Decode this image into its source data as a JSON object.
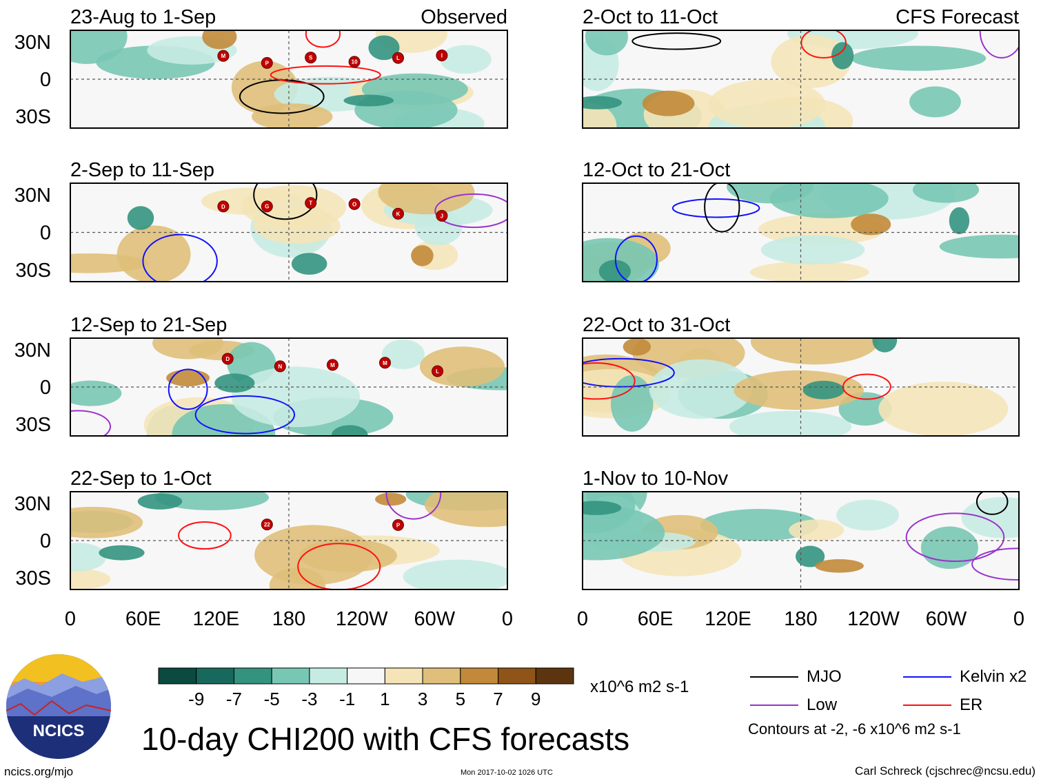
{
  "chart_data": {
    "type": "heatmap",
    "title": "10-day CHI200 with CFS forecasts",
    "units": "x10^6 m2 s-1",
    "headers": {
      "left": "Observed",
      "right": "CFS Forecast"
    },
    "x_ticks": [
      "0",
      "60E",
      "120E",
      "180",
      "120W",
      "60W",
      "0"
    ],
    "y_ticks": [
      "30N",
      "0",
      "30S"
    ],
    "colorbar": {
      "labels": [
        "-9",
        "-7",
        "-5",
        "-3",
        "-1",
        "1",
        "3",
        "5",
        "7",
        "9"
      ],
      "colors": [
        "#0b4a3f",
        "#16695c",
        "#33937f",
        "#78c7b4",
        "#c6ebe2",
        "#f7f7f7",
        "#f4e4b8",
        "#dfbf7a",
        "#c2893a",
        "#8e5418",
        "#5c3510"
      ]
    },
    "legend": [
      {
        "label": "MJO",
        "color": "#000000"
      },
      {
        "label": "Kelvin x2",
        "color": "#0000ff"
      },
      {
        "label": "Low",
        "color": "#9932cc"
      },
      {
        "label": "ER",
        "color": "#ff0000"
      }
    ],
    "contour_note": "Contours at -2, -6 x10^6 m2 s-1",
    "panels": [
      {
        "label": "23-Aug to 1-Sep",
        "storms": [
          "M",
          "P",
          "S",
          "10",
          "L",
          "I"
        ]
      },
      {
        "label": "2-Sep to 11-Sep",
        "storms": [
          "D",
          "G",
          "T",
          "O",
          "K",
          "J"
        ]
      },
      {
        "label": "12-Sep to 21-Sep",
        "storms": [
          "D",
          "N",
          "M",
          "M",
          "L"
        ]
      },
      {
        "label": "22-Sep to 1-Oct",
        "storms": [
          "22",
          "P"
        ]
      },
      {
        "label": "2-Oct to 11-Oct",
        "storms": []
      },
      {
        "label": "12-Oct to 21-Oct",
        "storms": []
      },
      {
        "label": "22-Oct to 31-Oct",
        "storms": []
      },
      {
        "label": "1-Nov to 10-Nov",
        "storms": []
      }
    ]
  },
  "logo": {
    "text": "NCICS"
  },
  "footer": {
    "left": "ncics.org/mjo",
    "middle": "Mon 2017-10-02 1026 UTC",
    "right": "Carl Schreck (cjschrec@ncsu.edu)"
  }
}
